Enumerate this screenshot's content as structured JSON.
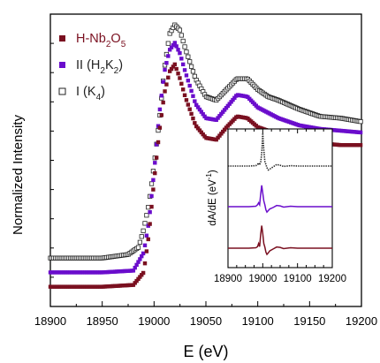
{
  "chart_data": [
    {
      "id": "main",
      "type": "scatter",
      "title": "",
      "xlabel": "E (eV)",
      "ylabel": "Normalized Intensity",
      "xlim": [
        18900,
        19200
      ],
      "xticks": [
        18900,
        18950,
        19000,
        19050,
        19100,
        19150,
        19200
      ],
      "y_ticks_labeled": false,
      "grid": false,
      "legend_position": "top-left",
      "series": [
        {
          "name": "I (K4)",
          "legend_main": "I (K",
          "legend_sub": "4",
          "legend_tail": ")",
          "color": "#222222",
          "marker": "open-square",
          "x": [
            18900,
            18950,
            18975,
            18985,
            18990,
            18995,
            19000,
            19005,
            19010,
            19015,
            19020,
            19025,
            19030,
            19040,
            19050,
            19060,
            19070,
            19080,
            19090,
            19100,
            19110,
            19120,
            19140,
            19160,
            19180,
            19200
          ],
          "y": [
            -0.28,
            -0.28,
            -0.26,
            -0.22,
            -0.12,
            0.02,
            0.24,
            0.48,
            0.78,
            0.97,
            1.02,
            0.99,
            0.89,
            0.72,
            0.62,
            0.6,
            0.66,
            0.72,
            0.72,
            0.66,
            0.62,
            0.6,
            0.55,
            0.51,
            0.5,
            0.48
          ]
        },
        {
          "name": "II (H2K2)",
          "legend_main": "II (H",
          "legend_sub": "2",
          "legend_mid": "K",
          "legend_sub2": "2",
          "legend_tail": ")",
          "color": "#6a0dcc",
          "marker": "filled-square",
          "x": [
            18900,
            18950,
            18980,
            18990,
            18995,
            19000,
            19005,
            19010,
            19015,
            19020,
            19025,
            19030,
            19040,
            19050,
            19060,
            19070,
            19080,
            19090,
            19100,
            19110,
            19120,
            19140,
            19160,
            19180,
            19200
          ],
          "y": [
            -0.36,
            -0.36,
            -0.35,
            -0.25,
            -0.08,
            0.2,
            0.52,
            0.76,
            0.88,
            0.92,
            0.86,
            0.76,
            0.58,
            0.5,
            0.49,
            0.56,
            0.63,
            0.62,
            0.56,
            0.53,
            0.5,
            0.46,
            0.44,
            0.43,
            0.42
          ]
        },
        {
          "name": "H-Nb2O5",
          "legend_main": "H-Nb",
          "legend_sub": "2",
          "legend_mid": "O",
          "legend_sub2": "5",
          "legend_tail": "",
          "color": "#7a1020",
          "marker": "filled-square",
          "x": [
            18900,
            18950,
            18980,
            18990,
            18995,
            19000,
            19005,
            19010,
            19015,
            19020,
            19025,
            19030,
            19040,
            19050,
            19060,
            19070,
            19080,
            19090,
            19100,
            19110,
            19120,
            19140,
            19160,
            19180,
            19200
          ],
          "y": [
            -0.44,
            -0.44,
            -0.43,
            -0.36,
            -0.15,
            0.15,
            0.42,
            0.64,
            0.76,
            0.8,
            0.72,
            0.62,
            0.46,
            0.39,
            0.38,
            0.45,
            0.51,
            0.5,
            0.45,
            0.43,
            0.41,
            0.38,
            0.36,
            0.35,
            0.35
          ]
        }
      ]
    },
    {
      "id": "inset",
      "type": "line",
      "title": "",
      "xlabel": "",
      "ylabel": "dA/dE (eV",
      "ylabel_sup": "-1",
      "ylabel_tail": ")",
      "xlim": [
        18900,
        19200
      ],
      "xticks": [
        18900,
        19000,
        19100,
        19200
      ],
      "grid": false,
      "series": [
        {
          "name": "",
          "color": "#222222",
          "style": "dotted",
          "x": [
            18900,
            18960,
            18980,
            18985,
            18988,
            18991,
            18994,
            18997,
            19000,
            19003,
            19006,
            19009,
            19012,
            19016,
            19020,
            19030,
            19040,
            19050,
            19060,
            19080,
            19100,
            19120,
            19140,
            19160,
            19180,
            19200
          ],
          "y": [
            0,
            0,
            0.01,
            0.04,
            0.08,
            0.03,
            0.1,
            0.32,
            0.85,
            0.42,
            0.12,
            0.04,
            -0.04,
            -0.1,
            -0.08,
            -0.02,
            0.04,
            0.02,
            -0.01,
            0.01,
            0,
            0,
            0,
            0,
            0,
            0
          ]
        },
        {
          "name": "",
          "color": "#6a0dcc",
          "style": "solid",
          "x": [
            18900,
            18960,
            18980,
            18985,
            18988,
            18991,
            18994,
            18997,
            19000,
            19003,
            19006,
            19009,
            19012,
            19016,
            19020,
            19030,
            19040,
            19050,
            19060,
            19080,
            19100,
            19120,
            19140,
            19160,
            19180,
            19200
          ],
          "y": [
            0,
            0,
            0.01,
            0.05,
            0.1,
            0.05,
            0.32,
            0.55,
            0.35,
            0.15,
            0.05,
            -0.08,
            -0.14,
            -0.1,
            -0.06,
            -0.02,
            0.03,
            0.02,
            -0.01,
            0.01,
            0,
            0,
            0,
            0,
            0,
            0
          ]
        },
        {
          "name": "",
          "color": "#7a1020",
          "style": "solid",
          "x": [
            18900,
            18960,
            18980,
            18985,
            18988,
            18991,
            18994,
            18997,
            19000,
            19003,
            19006,
            19009,
            19012,
            19016,
            19020,
            19030,
            19040,
            19050,
            19060,
            19080,
            19100,
            19120,
            19140,
            19160,
            19180,
            19200
          ],
          "y": [
            0,
            0,
            0.01,
            0.04,
            0.12,
            0.04,
            0.35,
            0.58,
            0.38,
            0.12,
            0.03,
            -0.1,
            -0.16,
            -0.12,
            -0.07,
            -0.02,
            0.03,
            0.02,
            -0.01,
            0.01,
            0,
            0,
            0,
            0,
            0,
            0
          ]
        }
      ]
    }
  ]
}
